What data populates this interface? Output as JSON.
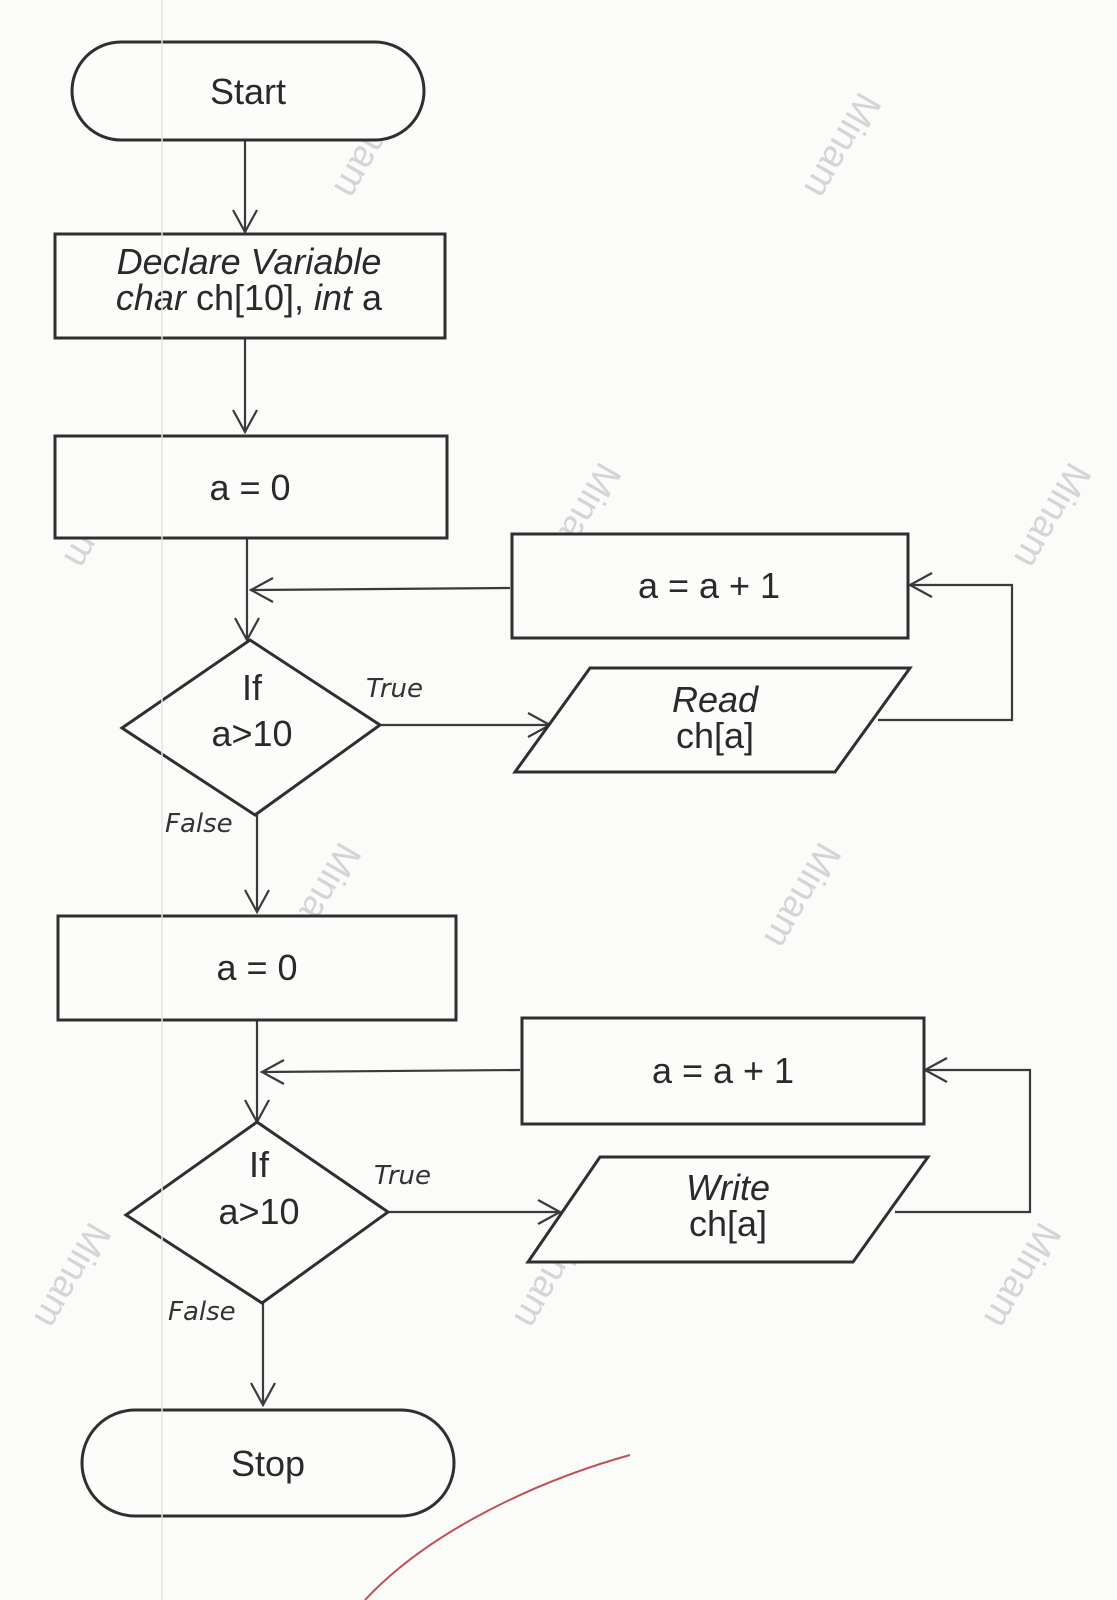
{
  "nodes": {
    "start": "Start",
    "declare_line1": "Declare Variable",
    "declare_line2_a": "char",
    "declare_line2_b": " ch[10], ",
    "declare_line2_c": "int",
    "declare_line2_d": " a",
    "init1": "a = 0",
    "inc1": "a = a + 1",
    "cond1_line1": "If",
    "cond1_line2": "a>10",
    "read_line1": "Read",
    "read_line2": "ch[a]",
    "init2": "a = 0",
    "inc2": "a = a + 1",
    "cond2_line1": "If",
    "cond2_line2": "a>10",
    "write_line1": "Write",
    "write_line2": "ch[a]",
    "stop": "Stop"
  },
  "edge_labels": {
    "true1": "True",
    "false1": "False",
    "true2": "True",
    "false2": "False"
  },
  "watermark": "Minam"
}
